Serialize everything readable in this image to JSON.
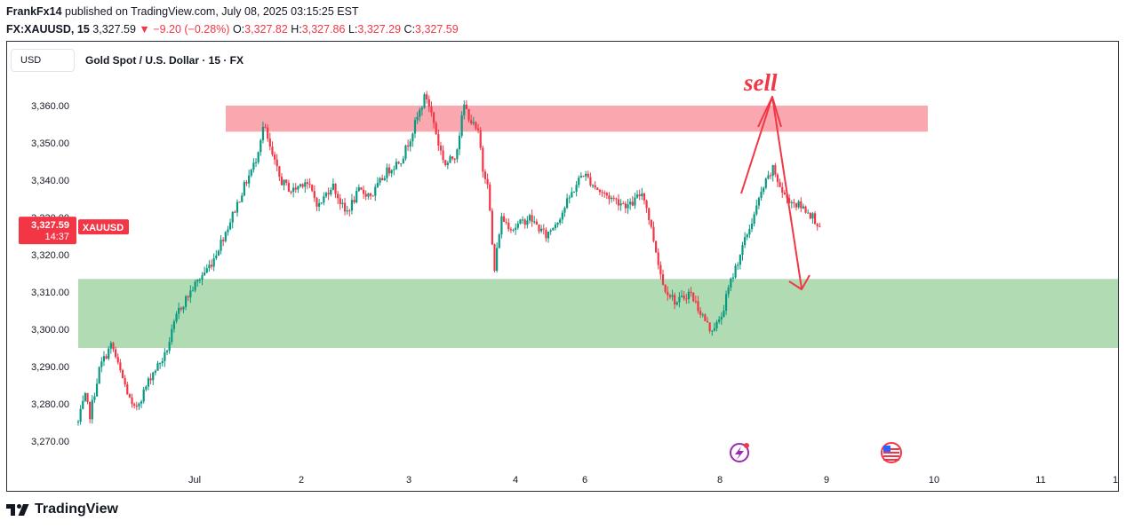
{
  "header": {
    "author": "FrankFx14",
    "published": "published on TradingView.com, July 08, 2025 03:15:25 EST",
    "symbol": "FX:XAUUSD, 15",
    "last": "3,327.59",
    "change_arrow": "▼",
    "change": "−9.20 (−0.28%)",
    "o_label": "O:",
    "o_value": "3,327.82",
    "h_label": "H:",
    "h_value": "3,327.86",
    "l_label": "L:",
    "l_value": "3,327.29",
    "c_label": "C:",
    "c_value": "3,327.59"
  },
  "toolbar": {
    "currency_button": "USD"
  },
  "legend": {
    "title": "Gold Spot / U.S. Dollar · 15 · FX"
  },
  "price_tag": {
    "price": "3,327.59",
    "countdown": "14:37",
    "symbol_tag": "XAUUSD"
  },
  "annotation": {
    "text": "sell"
  },
  "brand": {
    "name": "TradingView"
  },
  "icons": {
    "events": "lightning-event-icon",
    "flag": "us-flag-icon",
    "logo": "tradingview-logo-icon"
  },
  "colors": {
    "up": "#089981",
    "down": "#f23645",
    "resistance": "#f8a8ae",
    "support": "#b1dcb3",
    "annotation": "#f23645",
    "text": "#131722"
  },
  "chart_data": {
    "type": "candlestick",
    "title": "Gold Spot / U.S. Dollar · 15 · FX",
    "ylim": [
      3265,
      3370
    ],
    "y_ticks": [
      3270,
      3280,
      3290,
      3300,
      3310,
      3320,
      3330,
      3340,
      3350,
      3360
    ],
    "y_tick_labels": [
      "3,270.00",
      "3,280.00",
      "3,290.00",
      "3,300.00",
      "3,310.00",
      "3,320.00",
      "3,330.00",
      "3,340.00",
      "3,350.00",
      "3,360.00"
    ],
    "x_tick_labels": [
      "Jul",
      "2",
      "3",
      "4",
      "6",
      "8",
      "9",
      "10",
      "11",
      "1"
    ],
    "last_price": 3327.59,
    "zones": [
      {
        "name": "resistance",
        "low": 3353,
        "high": 3360
      },
      {
        "name": "support",
        "low": 3295,
        "high": 3313.5
      }
    ],
    "path": [
      {
        "t": 0.0,
        "p": 3275
      },
      {
        "t": 0.2,
        "p": 3282
      },
      {
        "t": 0.35,
        "p": 3277
      },
      {
        "t": 0.65,
        "p": 3290
      },
      {
        "t": 1.0,
        "p": 3296
      },
      {
        "t": 1.2,
        "p": 3290
      },
      {
        "t": 1.4,
        "p": 3285
      },
      {
        "t": 1.65,
        "p": 3278
      },
      {
        "t": 1.9,
        "p": 3282
      },
      {
        "t": 2.2,
        "p": 3288
      },
      {
        "t": 2.6,
        "p": 3293
      },
      {
        "t": 3.0,
        "p": 3305
      },
      {
        "t": 3.5,
        "p": 3312
      },
      {
        "t": 4.0,
        "p": 3318
      },
      {
        "t": 4.5,
        "p": 3328
      },
      {
        "t": 5.0,
        "p": 3339
      },
      {
        "t": 5.3,
        "p": 3345
      },
      {
        "t": 5.55,
        "p": 3355
      },
      {
        "t": 5.75,
        "p": 3348
      },
      {
        "t": 6.05,
        "p": 3340
      },
      {
        "t": 6.4,
        "p": 3337
      },
      {
        "t": 6.8,
        "p": 3340
      },
      {
        "t": 7.2,
        "p": 3333
      },
      {
        "t": 7.6,
        "p": 3339
      },
      {
        "t": 8.0,
        "p": 3331
      },
      {
        "t": 8.4,
        "p": 3337
      },
      {
        "t": 8.8,
        "p": 3336
      },
      {
        "t": 9.2,
        "p": 3342
      },
      {
        "t": 9.7,
        "p": 3346
      },
      {
        "t": 10.0,
        "p": 3353
      },
      {
        "t": 10.4,
        "p": 3363
      },
      {
        "t": 10.6,
        "p": 3357
      },
      {
        "t": 10.8,
        "p": 3349
      },
      {
        "t": 11.0,
        "p": 3344
      },
      {
        "t": 11.3,
        "p": 3347
      },
      {
        "t": 11.55,
        "p": 3360
      },
      {
        "t": 11.8,
        "p": 3355
      },
      {
        "t": 12.0,
        "p": 3352
      },
      {
        "t": 12.1,
        "p": 3343
      },
      {
        "t": 12.25,
        "p": 3340
      },
      {
        "t": 12.45,
        "p": 3315
      },
      {
        "t": 12.65,
        "p": 3330
      },
      {
        "t": 13.0,
        "p": 3327
      },
      {
        "t": 13.5,
        "p": 3330
      },
      {
        "t": 14.0,
        "p": 3325
      },
      {
        "t": 14.4,
        "p": 3330
      },
      {
        "t": 14.8,
        "p": 3337
      },
      {
        "t": 15.1,
        "p": 3342
      },
      {
        "t": 15.3,
        "p": 3340
      },
      {
        "t": 15.6,
        "p": 3337
      },
      {
        "t": 16.0,
        "p": 3335
      },
      {
        "t": 16.5,
        "p": 3333
      },
      {
        "t": 16.9,
        "p": 3337
      },
      {
        "t": 17.2,
        "p": 3325
      },
      {
        "t": 17.5,
        "p": 3312
      },
      {
        "t": 17.9,
        "p": 3307
      },
      {
        "t": 18.3,
        "p": 3310
      },
      {
        "t": 18.6,
        "p": 3305
      },
      {
        "t": 18.9,
        "p": 3300
      },
      {
        "t": 19.2,
        "p": 3302
      },
      {
        "t": 19.5,
        "p": 3312
      },
      {
        "t": 19.8,
        "p": 3320
      },
      {
        "t": 20.2,
        "p": 3330
      },
      {
        "t": 20.5,
        "p": 3338
      },
      {
        "t": 20.8,
        "p": 3343
      },
      {
        "t": 21.1,
        "p": 3336
      },
      {
        "t": 21.4,
        "p": 3334
      },
      {
        "t": 21.8,
        "p": 3332
      },
      {
        "t": 22.0,
        "p": 3330
      },
      {
        "t": 22.2,
        "p": 3327.59
      }
    ]
  }
}
